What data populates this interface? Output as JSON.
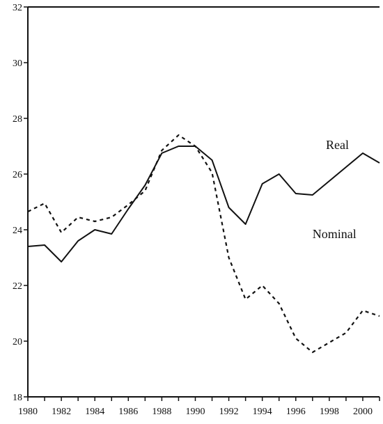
{
  "chart_data": {
    "type": "line",
    "title": "",
    "xlabel": "",
    "ylabel": "",
    "xlim": [
      1980,
      2001
    ],
    "ylim": [
      18,
      32
    ],
    "grid": false,
    "legend": "none",
    "x_ticks": [
      1980,
      1982,
      1984,
      1986,
      1988,
      1990,
      1992,
      1994,
      1996,
      1998,
      2000
    ],
    "y_ticks": [
      18,
      20,
      22,
      24,
      26,
      28,
      30,
      32
    ],
    "x": [
      1980,
      1981,
      1982,
      1983,
      1984,
      1985,
      1986,
      1987,
      1988,
      1989,
      1990,
      1991,
      1992,
      1993,
      1994,
      1995,
      1996,
      1997,
      1998,
      1999,
      2000,
      2001
    ],
    "series": [
      {
        "name": "Real",
        "style": "solid",
        "color": "#111111",
        "values": [
          23.4,
          23.45,
          22.85,
          23.6,
          24.0,
          23.85,
          24.75,
          25.6,
          26.75,
          27.0,
          27.0,
          26.5,
          24.8,
          24.2,
          25.65,
          26.0,
          25.3,
          25.25,
          25.75,
          26.25,
          26.75,
          26.4
        ]
      },
      {
        "name": "Nominal",
        "style": "dashed",
        "color": "#111111",
        "values": [
          24.65,
          24.95,
          23.9,
          24.45,
          24.3,
          24.45,
          24.9,
          25.4,
          26.85,
          27.4,
          27.0,
          26.05,
          23.0,
          21.5,
          22.0,
          21.35,
          20.1,
          19.6,
          19.95,
          20.3,
          21.1,
          20.9
        ]
      }
    ],
    "annotations": [
      {
        "text": "Real",
        "x": 1997.8,
        "y": 26.9
      },
      {
        "text": "Nominal",
        "x": 1997.0,
        "y": 23.7
      }
    ]
  }
}
